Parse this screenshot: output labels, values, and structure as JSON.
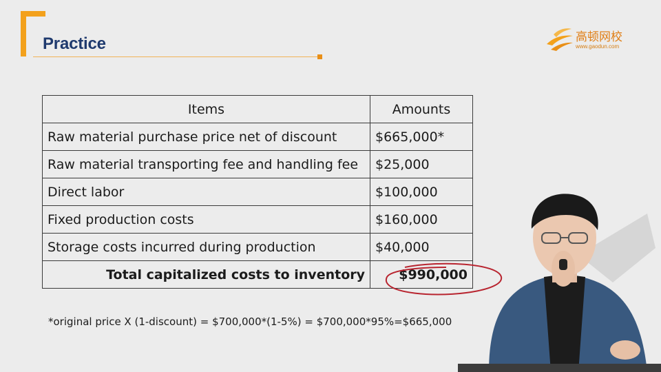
{
  "slide": {
    "title": "Practice"
  },
  "logo": {
    "brand": "高顿网校",
    "url": "www.gaodun.com"
  },
  "table": {
    "headers": [
      "Items",
      "Amounts"
    ],
    "rows": [
      {
        "item": "Raw material purchase price net of discount",
        "amount": "$665,000*"
      },
      {
        "item": "Raw material transporting fee and handling fee",
        "amount": "$25,000"
      },
      {
        "item": "Direct labor",
        "amount": "$100,000"
      },
      {
        "item": "Fixed production costs",
        "amount": "$160,000"
      },
      {
        "item": "Storage costs incurred during production",
        "amount": "$40,000"
      }
    ],
    "total": {
      "label": "Total capitalized costs to inventory",
      "amount": "$990,000"
    }
  },
  "footnote": "*original price X (1-discount) = $700,000*(1-5%) =  $700,000*95%=$665,000",
  "colors": {
    "accent": "#f3a11c",
    "title": "#1f3a6e",
    "annotation": "#b8242f"
  }
}
